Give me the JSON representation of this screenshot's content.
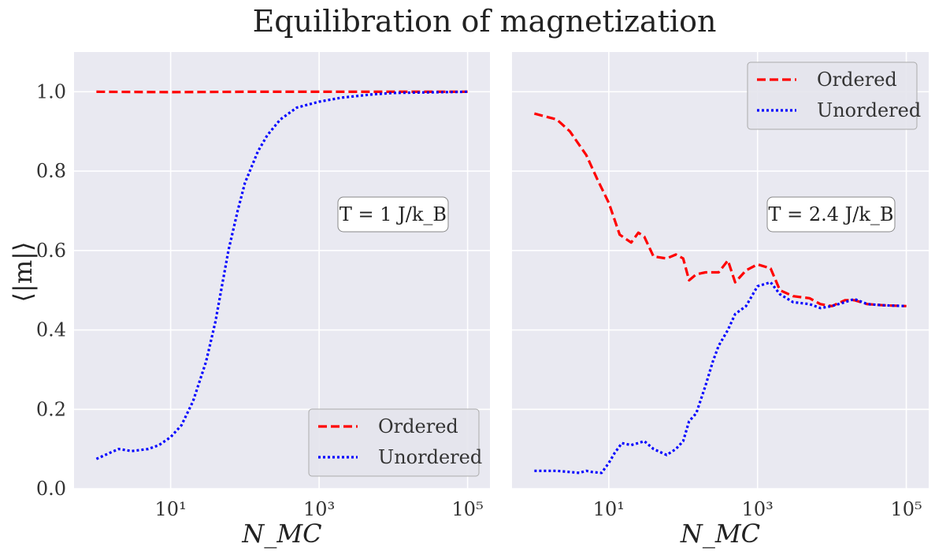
{
  "figure": {
    "title": "Equilibration of magnetization",
    "ylabel": "⟨|m|⟩",
    "colors": {
      "background": "#e9e9f1",
      "grid": "#ffffff",
      "ordered": "#ff0000",
      "unordered": "#0000ff"
    }
  },
  "chart_data": [
    {
      "type": "line",
      "panel": "left",
      "xscale": "log",
      "xlim": [
        0.5,
        200000
      ],
      "ylim": [
        0.0,
        1.1
      ],
      "xticks": [
        10,
        1000,
        100000
      ],
      "xtick_labels": [
        "10¹",
        "10³",
        "10⁵"
      ],
      "yticks": [
        0.0,
        0.2,
        0.4,
        0.6,
        0.8,
        1.0
      ],
      "ytick_labels": [
        "0.0",
        "0.2",
        "0.4",
        "0.6",
        "0.8",
        "1.0"
      ],
      "xlabel": "N_MC",
      "ylabel": "⟨|m|⟩",
      "annotation": "T = 1 J/k_B",
      "grid": true,
      "legend": {
        "placement": "lower-right",
        "entries": [
          "Ordered",
          "Unordered"
        ]
      },
      "series": [
        {
          "name": "Ordered",
          "style": "dashed",
          "color": "#ff0000",
          "x": [
            1,
            10,
            100,
            1000,
            10000,
            100000
          ],
          "y": [
            1.0,
            0.999,
            1.0,
            1.0,
            1.0,
            1.0
          ]
        },
        {
          "name": "Unordered",
          "style": "dotted",
          "color": "#0000ff",
          "x": [
            1,
            1.5,
            2,
            3,
            5,
            7,
            10,
            14,
            20,
            30,
            40,
            60,
            80,
            100,
            150,
            200,
            300,
            500,
            1000,
            2000,
            5000,
            10000,
            100000
          ],
          "y": [
            0.075,
            0.09,
            0.1,
            0.095,
            0.1,
            0.11,
            0.13,
            0.16,
            0.22,
            0.32,
            0.42,
            0.6,
            0.7,
            0.77,
            0.85,
            0.89,
            0.93,
            0.96,
            0.975,
            0.985,
            0.993,
            0.997,
            1.0
          ]
        }
      ]
    },
    {
      "type": "line",
      "panel": "right",
      "xscale": "log",
      "xlim": [
        0.5,
        200000
      ],
      "ylim": [
        0.0,
        1.1
      ],
      "xticks": [
        10,
        1000,
        100000
      ],
      "xtick_labels": [
        "10¹",
        "10³",
        "10⁵"
      ],
      "yticks": [
        0.0,
        0.2,
        0.4,
        0.6,
        0.8,
        1.0
      ],
      "xlabel": "N_MC",
      "annotation": "T = 2.4 J/k_B",
      "grid": true,
      "legend": {
        "placement": "upper-right",
        "entries": [
          "Ordered",
          "Unordered"
        ]
      },
      "series": [
        {
          "name": "Ordered",
          "style": "dashed",
          "color": "#ff0000",
          "x": [
            1,
            2,
            3,
            5,
            7,
            10,
            14,
            20,
            25,
            30,
            40,
            60,
            80,
            100,
            120,
            150,
            200,
            300,
            400,
            500,
            700,
            1000,
            1500,
            2000,
            3000,
            5000,
            7000,
            10000,
            15000,
            20000,
            30000,
            50000,
            100000
          ],
          "y": [
            0.945,
            0.93,
            0.9,
            0.84,
            0.78,
            0.72,
            0.64,
            0.62,
            0.645,
            0.635,
            0.585,
            0.58,
            0.59,
            0.58,
            0.525,
            0.54,
            0.545,
            0.545,
            0.575,
            0.52,
            0.55,
            0.565,
            0.555,
            0.5,
            0.485,
            0.48,
            0.465,
            0.46,
            0.475,
            0.475,
            0.465,
            0.462,
            0.46
          ]
        },
        {
          "name": "Unordered",
          "style": "dotted",
          "color": "#0000ff",
          "x": [
            1,
            2,
            3,
            4,
            5,
            6,
            8,
            10,
            12,
            15,
            20,
            25,
            30,
            40,
            60,
            80,
            100,
            120,
            150,
            200,
            250,
            300,
            400,
            500,
            700,
            1000,
            1500,
            2000,
            3000,
            5000,
            7000,
            10000,
            15000,
            20000,
            30000,
            50000,
            100000
          ],
          "y": [
            0.045,
            0.045,
            0.042,
            0.04,
            0.045,
            0.042,
            0.04,
            0.065,
            0.09,
            0.115,
            0.11,
            0.115,
            0.12,
            0.1,
            0.085,
            0.1,
            0.12,
            0.17,
            0.19,
            0.26,
            0.32,
            0.36,
            0.4,
            0.44,
            0.46,
            0.51,
            0.52,
            0.49,
            0.47,
            0.465,
            0.455,
            0.46,
            0.47,
            0.478,
            0.465,
            0.462,
            0.46
          ]
        }
      ]
    }
  ]
}
